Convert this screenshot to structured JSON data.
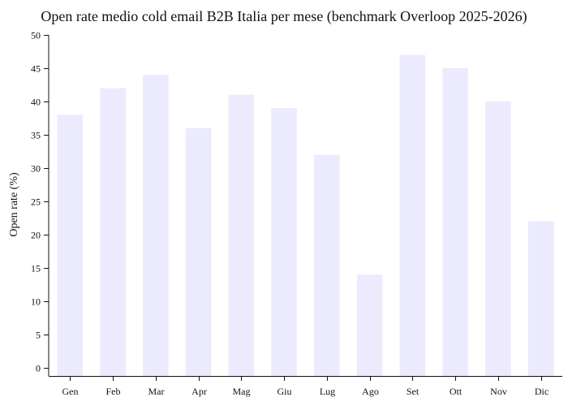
{
  "chart_data": {
    "type": "bar",
    "title": "Open rate medio cold email B2B Italia per mese (benchmark Overloop 2025-2026)",
    "xlabel": "",
    "ylabel": "Open rate (%)",
    "categories": [
      "Gen",
      "Feb",
      "Mar",
      "Apr",
      "Mag",
      "Giu",
      "Lug",
      "Ago",
      "Set",
      "Ott",
      "Nov",
      "Dic"
    ],
    "values": [
      38,
      42,
      44,
      36,
      41,
      39,
      32,
      14,
      47,
      45,
      40,
      22
    ],
    "ylim": [
      0,
      50
    ],
    "yticks": [
      0,
      5,
      10,
      15,
      20,
      25,
      30,
      35,
      40,
      45,
      50
    ],
    "grid": false,
    "legend": false,
    "colors": {
      "bar": "#ebebfd",
      "axis": "#111111",
      "text": "#111111"
    }
  }
}
